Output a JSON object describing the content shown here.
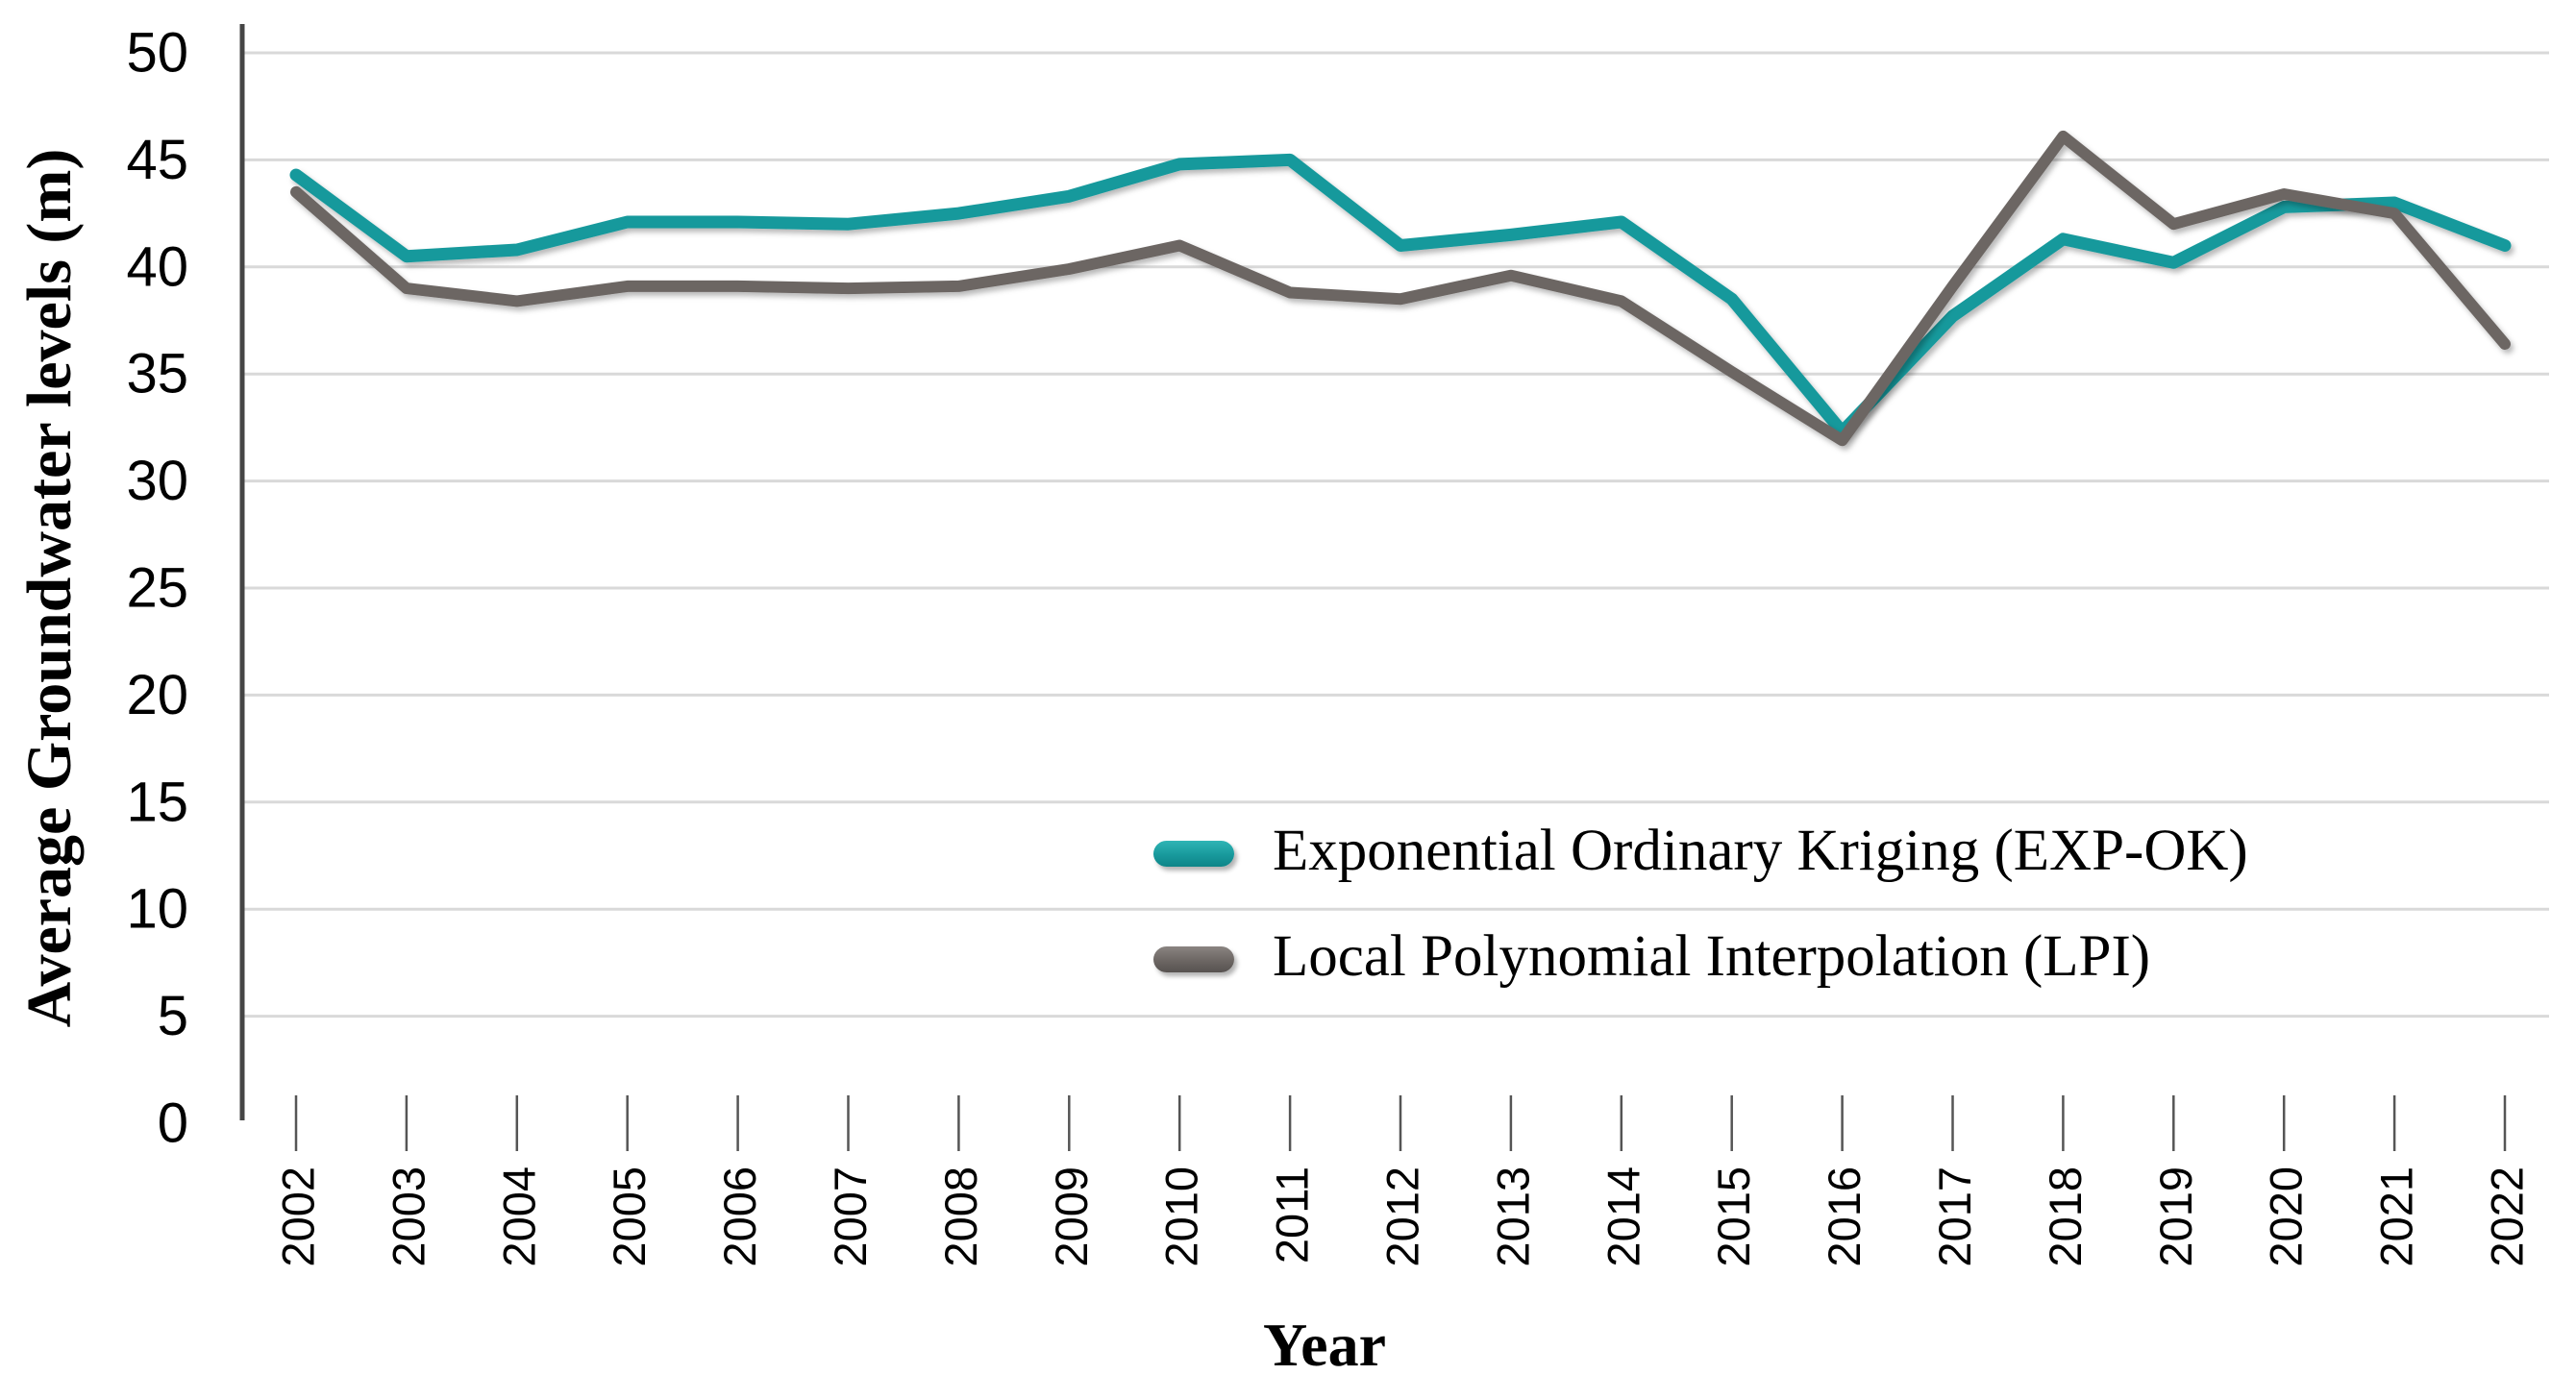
{
  "chart_data": {
    "type": "line",
    "title": "",
    "xlabel": "Year",
    "ylabel": "Average Groundwater levels (m)",
    "x": [
      2002,
      2003,
      2004,
      2005,
      2006,
      2007,
      2008,
      2009,
      2010,
      2011,
      2012,
      2013,
      2014,
      2015,
      2016,
      2017,
      2018,
      2019,
      2020,
      2021,
      2022
    ],
    "series": [
      {
        "name": "Exponential Ordinary Kriging (EXP-OK)",
        "color": "#18999C",
        "values": [
          44.3,
          40.5,
          40.8,
          42.1,
          42.1,
          42.0,
          42.5,
          43.3,
          44.8,
          45.0,
          41.0,
          41.5,
          42.1,
          38.5,
          32.3,
          37.7,
          41.3,
          40.2,
          42.8,
          43.0,
          41.0
        ]
      },
      {
        "name": "Local Polynomial Interpolation (LPI)",
        "color": "#6C6663",
        "values": [
          43.5,
          39.0,
          38.4,
          39.1,
          39.1,
          39.0,
          39.1,
          39.9,
          41.0,
          38.8,
          38.5,
          39.6,
          38.4,
          35.1,
          31.9,
          39.1,
          46.1,
          42.0,
          43.4,
          42.5,
          36.4
        ]
      }
    ],
    "ylim": [
      0,
      50
    ],
    "ytick_step": 5,
    "yticks": [
      0,
      5,
      10,
      15,
      20,
      25,
      30,
      35,
      40,
      45,
      50
    ],
    "grid": true,
    "grid_color": "#D9D9D9",
    "axis_color": "#454545",
    "tick_color": "#555555",
    "legend_position": "inside-lower-right"
  }
}
